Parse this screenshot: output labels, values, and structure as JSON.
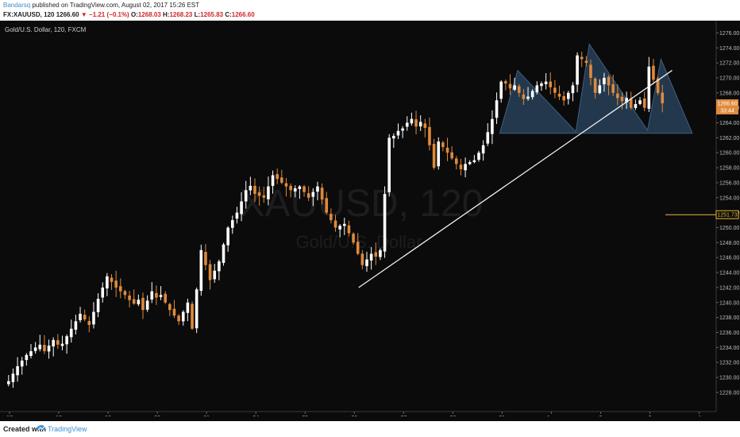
{
  "header": {
    "author": "Bandarsq",
    "published_text": "published on TradingView.com, August 02, 2017 15:26 EST",
    "symbol": "FX:XAUUSD, 120",
    "last": "1266.60",
    "change_arrow": "▼",
    "change": "−1.21 (−0.1%)",
    "o_label": "O:",
    "o_value": "1268.03",
    "h_label": "H:",
    "h_value": "1268.23",
    "l_label": "L:",
    "l_value": "1265.83",
    "c_label": "C:",
    "c_value": "1266.60"
  },
  "legend": {
    "title": "Gold/U.S. Dollar, 120, FXCM"
  },
  "watermark": {
    "symbol": "XAUUSD, 120",
    "name": "Gold/U.S. Dollar"
  },
  "price_tags": {
    "last_price": "1266.60",
    "countdown": "33:44",
    "horizontal_line": "1251.73"
  },
  "footer": {
    "created_with": "Created with",
    "brand": "TradingView"
  },
  "colors": {
    "up": "#ffffff",
    "down": "#e08a3a",
    "pattern": "#2c4a66",
    "horizontal_line": "#e8b830"
  },
  "chart_data": {
    "type": "candlestick",
    "y_ticks": [
      1228,
      1230,
      1232,
      1234,
      1236,
      1238,
      1240,
      1242,
      1244,
      1246,
      1248,
      1250,
      1252,
      1254,
      1256,
      1258,
      1260,
      1262,
      1264,
      1266,
      1268,
      1270,
      1272,
      1274,
      1276
    ],
    "ylim": [
      1226.5,
      1277.0
    ],
    "x_ticks": [
      {
        "label": "17",
        "idx": 0
      },
      {
        "label": "18",
        "idx": 11
      },
      {
        "label": "19",
        "idx": 22
      },
      {
        "label": "20",
        "idx": 33
      },
      {
        "label": "21",
        "idx": 44
      },
      {
        "label": "24",
        "idx": 55
      },
      {
        "label": "25",
        "idx": 66
      },
      {
        "label": "26",
        "idx": 77
      },
      {
        "label": "27",
        "idx": 88
      },
      {
        "label": "28",
        "idx": 99
      },
      {
        "label": "31",
        "idx": 110
      },
      {
        "label": "Aug",
        "idx": 121
      },
      {
        "label": "2",
        "idx": 132
      },
      {
        "label": "3",
        "idx": 143
      },
      {
        "label": "4",
        "idx": 154
      }
    ],
    "close_path": [
      [
        0,
        1229.5
      ],
      [
        2,
        1231.5
      ],
      [
        4,
        1233
      ],
      [
        6,
        1234
      ],
      [
        8,
        1233.5
      ],
      [
        10,
        1235
      ],
      [
        12,
        1234.5
      ],
      [
        14,
        1236.5
      ],
      [
        16,
        1238.5
      ],
      [
        18,
        1237
      ],
      [
        20,
        1240.5
      ],
      [
        22,
        1243.5
      ],
      [
        24,
        1242
      ],
      [
        26,
        1241
      ],
      [
        28,
        1240.5
      ],
      [
        30,
        1239
      ],
      [
        32,
        1241.5
      ],
      [
        34,
        1241
      ],
      [
        36,
        1239
      ],
      [
        38,
        1237.5
      ],
      [
        40,
        1240
      ],
      [
        41,
        1236.5
      ],
      [
        43,
        1247
      ],
      [
        45,
        1243
      ],
      [
        47,
        1245.5
      ],
      [
        49,
        1250
      ],
      [
        51,
        1252
      ],
      [
        53,
        1255
      ],
      [
        55,
        1254.5
      ],
      [
        57,
        1254
      ],
      [
        59,
        1257
      ],
      [
        61,
        1256
      ],
      [
        63,
        1255
      ],
      [
        65,
        1255.5
      ],
      [
        67,
        1254
      ],
      [
        69,
        1255.5
      ],
      [
        71,
        1252
      ],
      [
        73,
        1250
      ],
      [
        75,
        1250.5
      ],
      [
        77,
        1248
      ],
      [
        79,
        1245
      ],
      [
        81,
        1246.5
      ],
      [
        83,
        1247
      ],
      [
        85,
        1262
      ],
      [
        87,
        1262.5
      ],
      [
        89,
        1264
      ],
      [
        91,
        1263.5
      ],
      [
        93,
        1264
      ],
      [
        95,
        1258
      ],
      [
        96,
        1261.5
      ],
      [
        98,
        1260
      ],
      [
        100,
        1258.5
      ],
      [
        102,
        1258.5
      ],
      [
        104,
        1259
      ],
      [
        106,
        1261
      ],
      [
        108,
        1264.5
      ],
      [
        110,
        1269.5
      ],
      [
        112,
        1269
      ],
      [
        114,
        1268
      ],
      [
        116,
        1267.5
      ],
      [
        118,
        1269
      ],
      [
        120,
        1269.5
      ],
      [
        122,
        1268
      ],
      [
        124,
        1267
      ],
      [
        126,
        1269
      ],
      [
        127,
        1273
      ],
      [
        129,
        1272
      ],
      [
        131,
        1268
      ],
      [
        133,
        1270
      ],
      [
        135,
        1268
      ],
      [
        137,
        1267.5
      ],
      [
        139,
        1266
      ],
      [
        141,
        1267
      ],
      [
        142,
        1266
      ],
      [
        143,
        1271.5
      ],
      [
        145,
        1268
      ],
      [
        146,
        1266.6
      ]
    ],
    "overlays": [
      {
        "type": "trendline",
        "from": [
          78.5,
          1242.0
        ],
        "to": [
          148.5,
          1271.0
        ]
      },
      {
        "type": "polygon",
        "points": [
          [
            110,
            1262.6
          ],
          [
            114,
            1271.0
          ],
          [
            127,
            1262.8
          ],
          [
            130,
            1274.5
          ],
          [
            143,
            1263.0
          ],
          [
            146,
            1272.5
          ],
          [
            153,
            1262.6
          ]
        ]
      },
      {
        "type": "hline",
        "y": 1251.73
      }
    ]
  }
}
